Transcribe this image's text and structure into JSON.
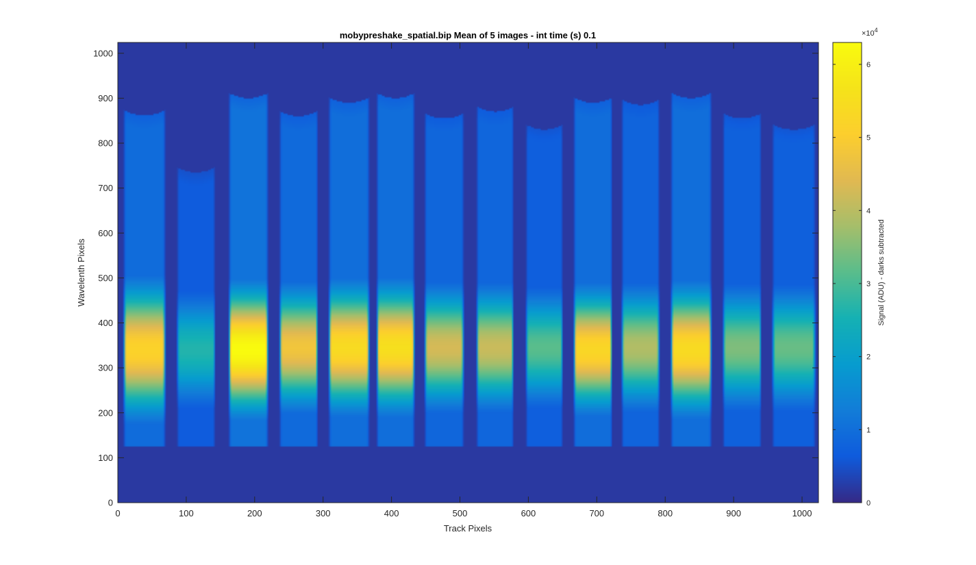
{
  "chart_data": {
    "type": "heatmap",
    "title": "mobypreshake_spatial.bip  Mean of 5 images - int time (s) 0.1",
    "xlabel": "Track Pixels",
    "ylabel": "Wavelenth Pixels",
    "xlim": [
      0,
      1024
    ],
    "ylim": [
      0,
      1024
    ],
    "xticks": [
      0,
      100,
      200,
      300,
      400,
      500,
      600,
      700,
      800,
      900,
      1000
    ],
    "yticks": [
      0,
      100,
      200,
      300,
      400,
      500,
      600,
      700,
      800,
      900,
      1000
    ],
    "colorbar": {
      "label": "Signal (ADU) - darks subtracted",
      "range": [
        0,
        63000
      ],
      "ticks": [
        0,
        1,
        2,
        3,
        4,
        5,
        6
      ],
      "exponent_label": "×10",
      "exponent_power": "4",
      "colormap": "parula"
    },
    "baseline_color": "#36328f",
    "dark_region_level": 0.03,
    "signal_bottom_row": 125,
    "stripes": [
      {
        "x0": 8,
        "x1": 70,
        "top": 862,
        "peak_row": 340,
        "peak": 0.82,
        "halfwidth": 150
      },
      {
        "x0": 86,
        "x1": 143,
        "top": 735,
        "peak_row": 340,
        "peak": 0.42,
        "halfwidth": 130
      },
      {
        "x0": 162,
        "x1": 220,
        "top": 900,
        "peak_row": 340,
        "peak": 1.0,
        "halfwidth": 140
      },
      {
        "x0": 236,
        "x1": 293,
        "top": 860,
        "peak_row": 345,
        "peak": 0.76,
        "halfwidth": 135
      },
      {
        "x0": 308,
        "x1": 368,
        "top": 890,
        "peak_row": 345,
        "peak": 0.86,
        "halfwidth": 140
      },
      {
        "x0": 378,
        "x1": 434,
        "top": 900,
        "peak_row": 345,
        "peak": 0.88,
        "halfwidth": 140
      },
      {
        "x0": 448,
        "x1": 506,
        "top": 855,
        "peak_row": 345,
        "peak": 0.68,
        "halfwidth": 135
      },
      {
        "x0": 524,
        "x1": 579,
        "top": 870,
        "peak_row": 345,
        "peak": 0.66,
        "halfwidth": 135
      },
      {
        "x0": 596,
        "x1": 651,
        "top": 830,
        "peak_row": 345,
        "peak": 0.5,
        "halfwidth": 130
      },
      {
        "x0": 666,
        "x1": 723,
        "top": 890,
        "peak_row": 340,
        "peak": 0.84,
        "halfwidth": 135
      },
      {
        "x0": 736,
        "x1": 792,
        "top": 885,
        "peak_row": 345,
        "peak": 0.62,
        "halfwidth": 135
      },
      {
        "x0": 808,
        "x1": 868,
        "top": 900,
        "peak_row": 340,
        "peak": 0.86,
        "halfwidth": 140
      },
      {
        "x0": 884,
        "x1": 941,
        "top": 855,
        "peak_row": 345,
        "peak": 0.55,
        "halfwidth": 135
      },
      {
        "x0": 956,
        "x1": 1020,
        "top": 830,
        "peak_row": 345,
        "peak": 0.52,
        "halfwidth": 135
      }
    ]
  }
}
